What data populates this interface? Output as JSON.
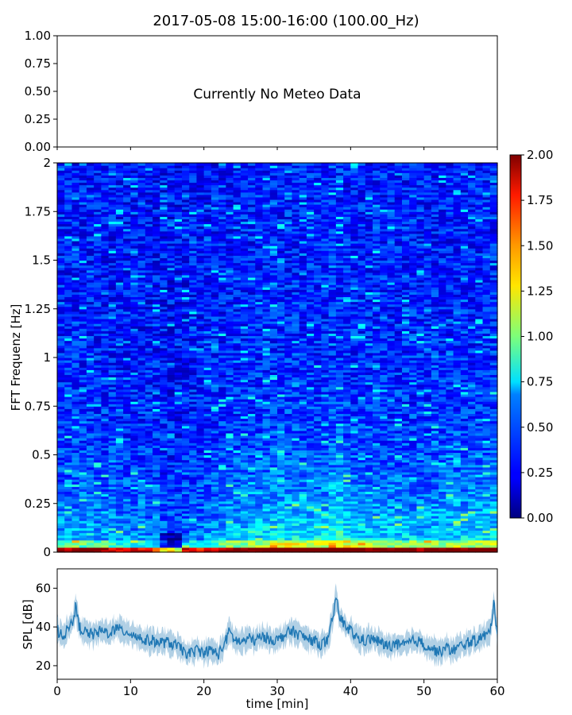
{
  "figure": {
    "title": "2017-05-08 15:00-16:00 (100.00_Hz)"
  },
  "chart_data": [
    {
      "type": "line",
      "panel": "meteo",
      "annotation": "Currently No Meteo Data",
      "ylim": [
        0,
        1
      ],
      "yticks": [
        "0.00",
        "0.25",
        "0.50",
        "0.75",
        "1.00"
      ],
      "xlim": [
        0,
        60
      ],
      "series": []
    },
    {
      "type": "heatmap",
      "panel": "spectrogram",
      "ylabel": "FFT Frequenz [Hz]",
      "xlim": [
        0,
        60
      ],
      "ylim": [
        0,
        2
      ],
      "yticks": [
        "0",
        "0.25",
        "0.5",
        "0.75",
        "1",
        "1.25",
        "1.5",
        "1.75",
        "2"
      ],
      "colormap": "jet",
      "colorbar": {
        "range": [
          0,
          2
        ],
        "ticks": [
          "0.00",
          "0.25",
          "0.50",
          "0.75",
          "1.00",
          "1.25",
          "1.50",
          "1.75",
          "2.00"
        ]
      },
      "time_profile": {
        "t": [
          0,
          3,
          6,
          9,
          12,
          14,
          16,
          18,
          21,
          24,
          27,
          30,
          33,
          36,
          38,
          40,
          43,
          47,
          50,
          53,
          56,
          59,
          60
        ],
        "level": [
          0.55,
          0.6,
          0.55,
          0.5,
          0.45,
          0.35,
          0.2,
          0.4,
          0.5,
          0.65,
          0.7,
          0.8,
          0.8,
          0.7,
          1.0,
          0.75,
          0.7,
          0.65,
          0.65,
          0.7,
          0.7,
          0.75,
          0.75
        ]
      },
      "low_freq_band_max_hz": 0.03
    },
    {
      "type": "line",
      "panel": "spl",
      "xlabel": "time [min]",
      "ylabel": "SPL [dB]",
      "xlim": [
        0,
        60
      ],
      "ylim": [
        13,
        70
      ],
      "xticks": [
        "0",
        "10",
        "20",
        "30",
        "40",
        "50",
        "60"
      ],
      "yticks": [
        "20",
        "40",
        "60"
      ],
      "color": "#1f77b4",
      "series": [
        {
          "x": [
            0,
            1,
            2,
            2.5,
            3,
            4,
            5,
            6,
            7,
            8,
            9,
            10,
            11,
            12,
            13,
            14,
            15,
            16,
            17,
            18,
            19,
            20,
            21,
            22,
            23,
            23.5,
            24,
            25,
            26,
            27,
            28,
            29,
            30,
            31,
            32,
            33,
            34,
            35,
            36,
            37,
            37.5,
            38,
            38.5,
            39,
            40,
            41,
            42,
            43,
            44,
            45,
            46,
            47,
            48,
            49,
            50,
            51,
            52,
            53,
            54,
            55,
            56,
            57,
            58,
            59,
            59.5,
            60
          ],
          "y": [
            38,
            36,
            42,
            50,
            40,
            37,
            36,
            38,
            37,
            39,
            38,
            37,
            35,
            33,
            33,
            32,
            32,
            31,
            28,
            26,
            28,
            27,
            28,
            26,
            33,
            38,
            34,
            32,
            34,
            33,
            35,
            34,
            33,
            36,
            38,
            36,
            34,
            33,
            31,
            33,
            44,
            55,
            45,
            42,
            38,
            34,
            33,
            34,
            32,
            30,
            31,
            30,
            32,
            33,
            31,
            29,
            27,
            29,
            28,
            30,
            32,
            33,
            35,
            37,
            52,
            38
          ]
        }
      ]
    }
  ]
}
